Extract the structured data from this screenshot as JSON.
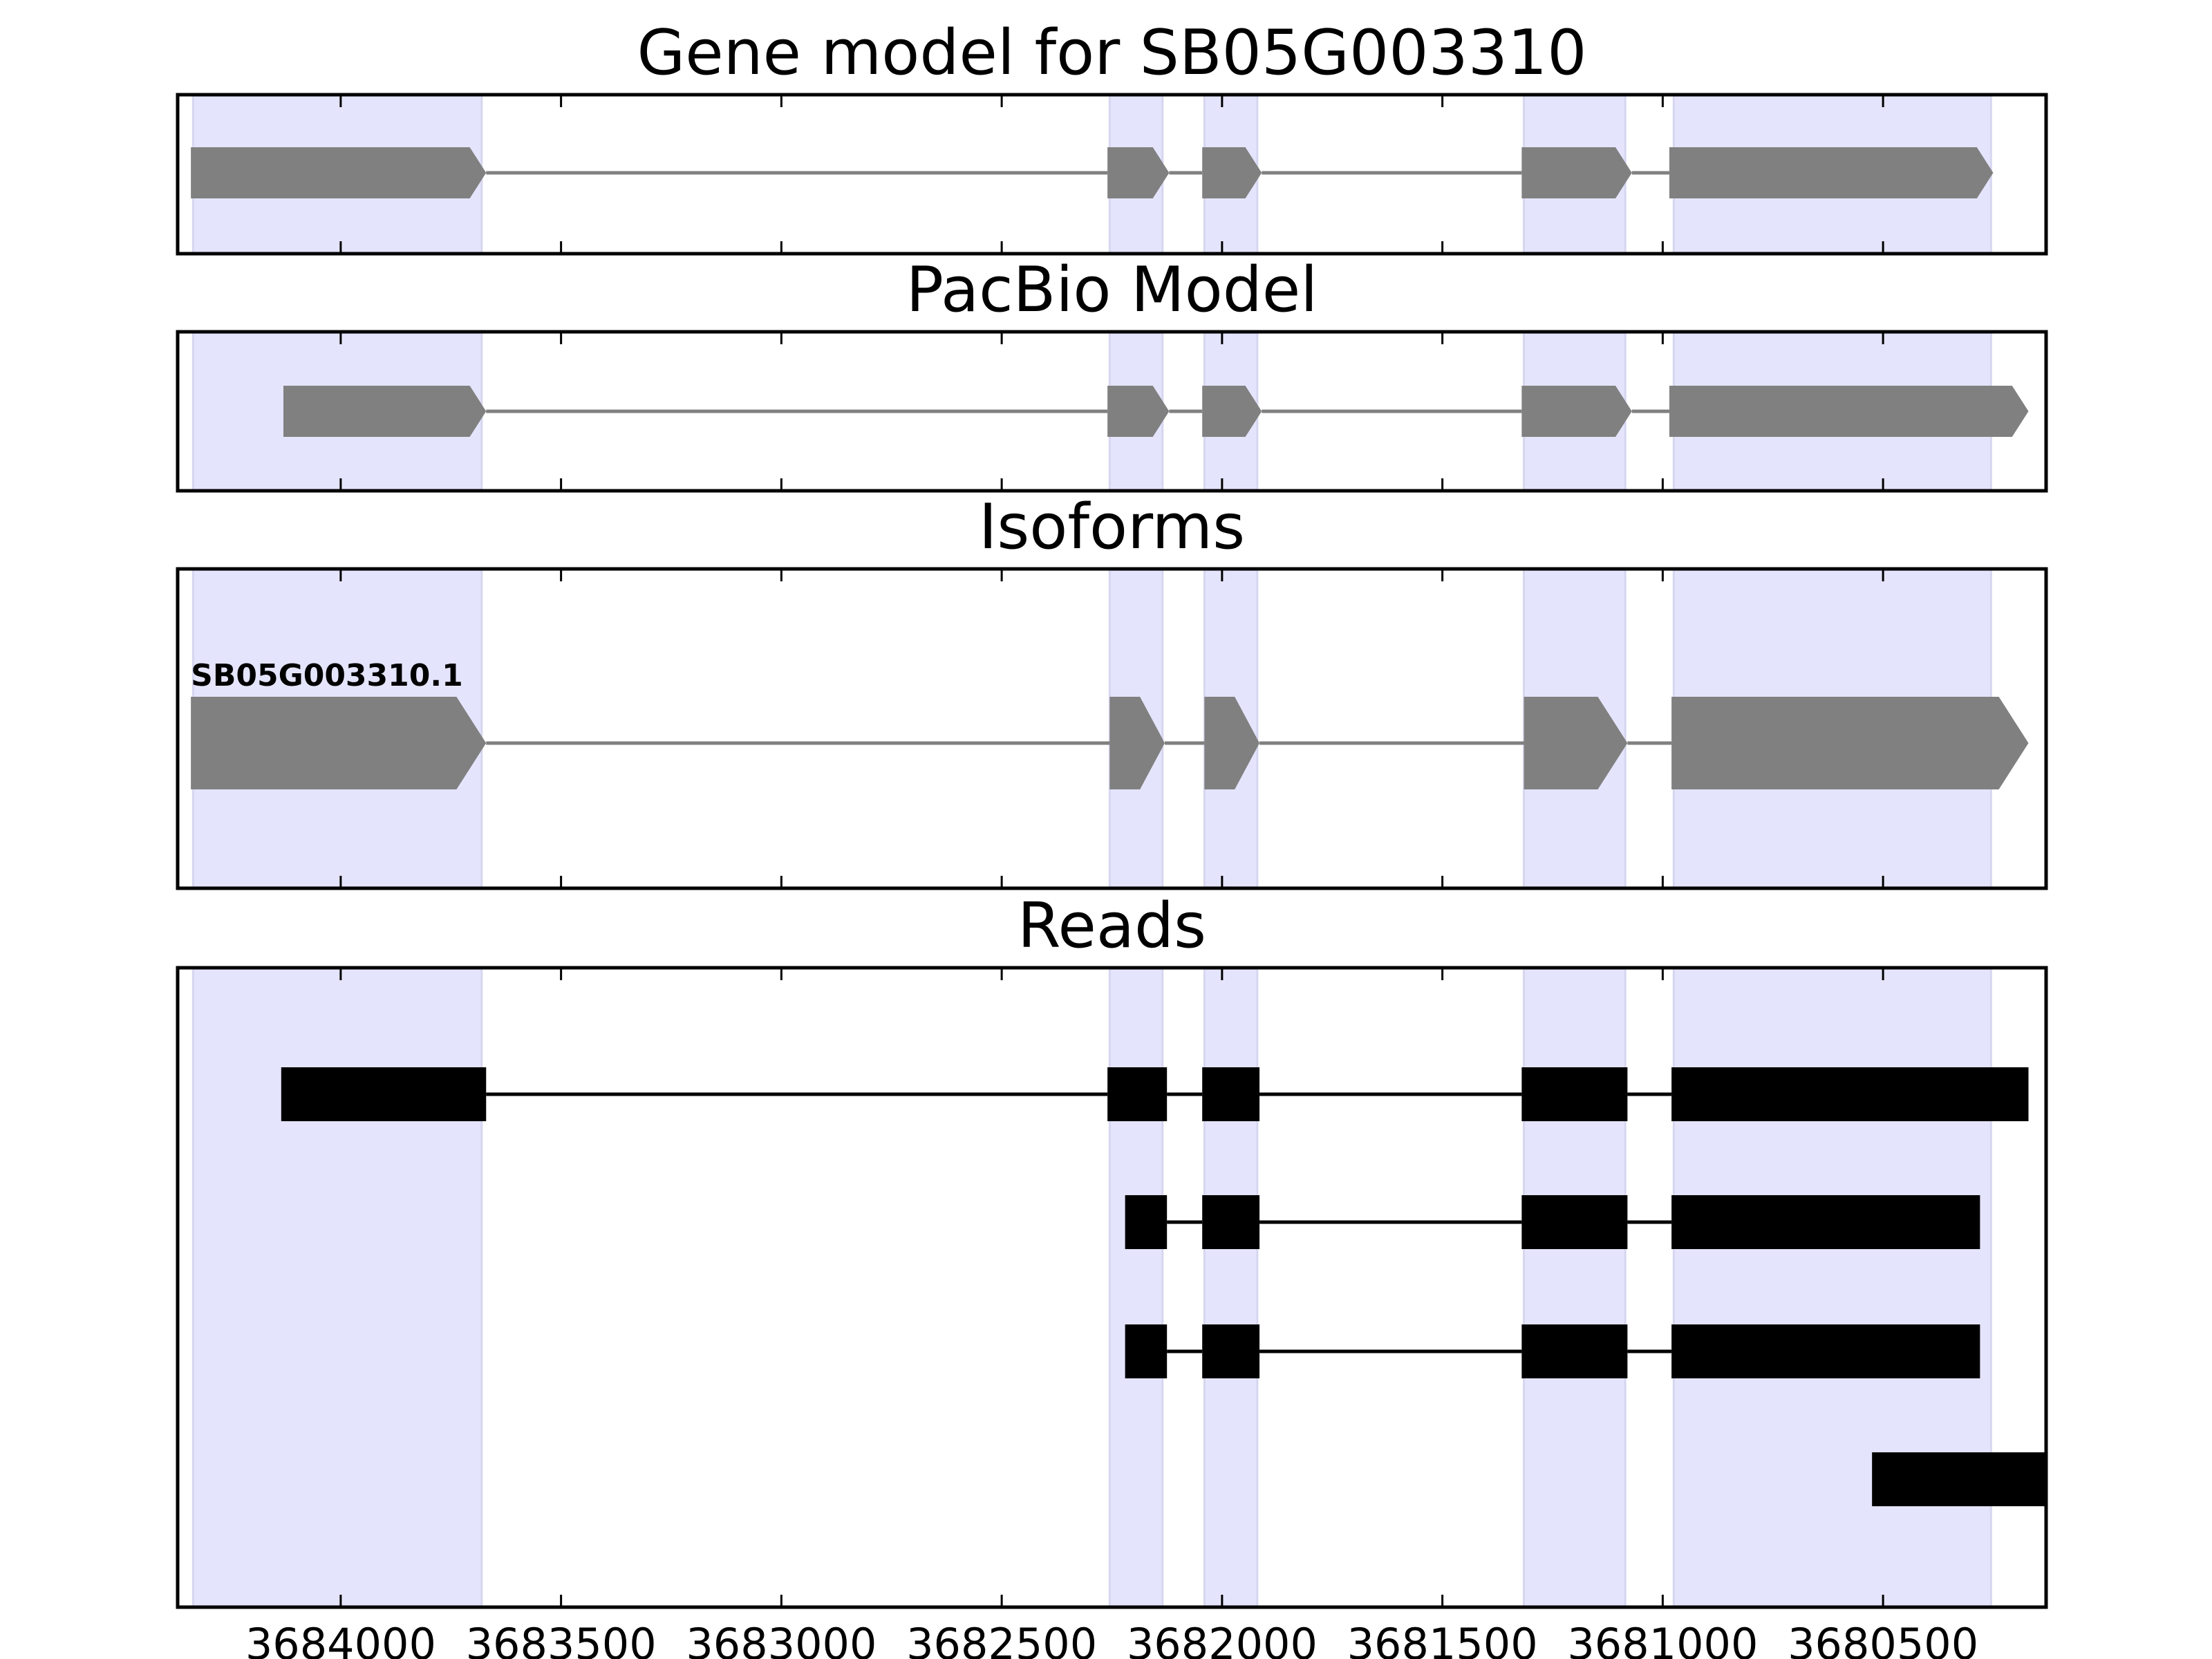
{
  "chart_data": {
    "type": "gene-structure",
    "x_axis": {
      "ticks": [
        3684000,
        3683500,
        3683000,
        3682500,
        3682000,
        3681500,
        3681000,
        3680500
      ],
      "tick_labels": [
        "3684000",
        "3683500",
        "3683000",
        "3682500",
        "3682000",
        "3681500",
        "3681000",
        "3680500"
      ],
      "range": [
        3684370,
        3680130
      ],
      "reversed": true
    },
    "highlight_regions": [
      [
        3684335,
        3683680
      ],
      [
        3682255,
        3682135
      ],
      [
        3682040,
        3681920
      ],
      [
        3681315,
        3681085
      ],
      [
        3680975,
        3680255
      ]
    ],
    "highlight_color": "#e4e4fc",
    "panels": [
      {
        "id": "gene-model",
        "title": "Gene model for SB05G003310",
        "style": "arrow",
        "color": "#808080",
        "tracks": [
          {
            "label": "",
            "exons": [
              [
                3684340,
                3683670
              ],
              [
                3682260,
                3682120
              ],
              [
                3682045,
                3681910
              ],
              [
                3681320,
                3681070
              ],
              [
                3680985,
                3680250
              ]
            ]
          }
        ]
      },
      {
        "id": "pacbio-model",
        "title": "PacBio Model",
        "style": "arrow",
        "color": "#808080",
        "tracks": [
          {
            "label": "",
            "exons": [
              [
                3684130,
                3683670
              ],
              [
                3682260,
                3682120
              ],
              [
                3682045,
                3681910
              ],
              [
                3681320,
                3681070
              ],
              [
                3680985,
                3680170
              ]
            ]
          }
        ]
      },
      {
        "id": "isoforms",
        "title": "Isoforms",
        "style": "arrow",
        "color": "#808080",
        "tracks": [
          {
            "label": "SB05G003310.1",
            "exons": [
              [
                3684340,
                3683670
              ],
              [
                3682255,
                3682130
              ],
              [
                3682040,
                3681915
              ],
              [
                3681315,
                3681080
              ],
              [
                3680980,
                3680170
              ]
            ]
          }
        ]
      },
      {
        "id": "reads",
        "title": "Reads",
        "style": "box",
        "color": "#000000",
        "tracks": [
          {
            "label": "",
            "exons": [
              [
                3684135,
                3683670
              ],
              [
                3682260,
                3682125
              ],
              [
                3682045,
                3681915
              ],
              [
                3681320,
                3681080
              ],
              [
                3680980,
                3680170
              ]
            ]
          },
          {
            "label": "",
            "exons": [
              [
                3682220,
                3682125
              ],
              [
                3682045,
                3681915
              ],
              [
                3681320,
                3681080
              ],
              [
                3680980,
                3680280
              ]
            ]
          },
          {
            "label": "",
            "exons": [
              [
                3682220,
                3682125
              ],
              [
                3682045,
                3681915
              ],
              [
                3681320,
                3681080
              ],
              [
                3680980,
                3680280
              ]
            ]
          },
          {
            "label": "",
            "exons": [
              [
                3680525,
                3680130
              ]
            ]
          }
        ]
      }
    ]
  }
}
